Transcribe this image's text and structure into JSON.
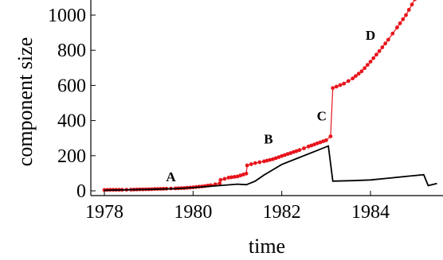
{
  "chart_data": {
    "type": "line",
    "xlabel": "time",
    "ylabel": "component size",
    "xlim": [
      1977.8,
      1985.6
    ],
    "ylim": [
      -10,
      1100
    ],
    "x_ticks": [
      1978,
      1980,
      1982,
      1984
    ],
    "y_ticks": [
      0,
      200,
      400,
      600,
      800,
      1000
    ],
    "grid": false,
    "legend": "none",
    "series": [
      {
        "color": "#e8141b",
        "marker": "circle",
        "points": [
          [
            1978.0,
            5
          ],
          [
            1978.2,
            6
          ],
          [
            1978.4,
            6
          ],
          [
            1978.6,
            7
          ],
          [
            1978.8,
            8
          ],
          [
            1979.0,
            9
          ],
          [
            1979.2,
            11
          ],
          [
            1979.4,
            12
          ],
          [
            1979.6,
            14
          ],
          [
            1979.8,
            16
          ],
          [
            1980.0,
            20
          ],
          [
            1980.2,
            25
          ],
          [
            1980.4,
            32
          ],
          [
            1980.6,
            42
          ],
          [
            1980.62,
            62
          ],
          [
            1980.8,
            75
          ],
          [
            1981.0,
            82
          ],
          [
            1981.2,
            98
          ],
          [
            1981.22,
            145
          ],
          [
            1981.4,
            158
          ],
          [
            1981.6,
            168
          ],
          [
            1981.8,
            180
          ],
          [
            1982.0,
            198
          ],
          [
            1982.2,
            215
          ],
          [
            1982.4,
            232
          ],
          [
            1982.6,
            252
          ],
          [
            1982.8,
            270
          ],
          [
            1983.0,
            288
          ],
          [
            1983.1,
            310
          ],
          [
            1983.15,
            585
          ],
          [
            1983.4,
            610
          ],
          [
            1983.6,
            640
          ],
          [
            1983.8,
            680
          ],
          [
            1984.0,
            735
          ],
          [
            1984.2,
            795
          ],
          [
            1984.4,
            860
          ],
          [
            1984.6,
            930
          ],
          [
            1984.8,
            1000
          ],
          [
            1985.0,
            1090
          ],
          [
            1985.1,
            1130
          ]
        ]
      },
      {
        "color": "#000000",
        "marker": "none",
        "points": [
          [
            1978.0,
            3
          ],
          [
            1979.0,
            8
          ],
          [
            1979.6,
            12
          ],
          [
            1980.0,
            18
          ],
          [
            1980.6,
            30
          ],
          [
            1981.0,
            38
          ],
          [
            1981.2,
            35
          ],
          [
            1981.4,
            55
          ],
          [
            1981.6,
            90
          ],
          [
            1981.8,
            120
          ],
          [
            1982.0,
            150
          ],
          [
            1982.4,
            190
          ],
          [
            1982.8,
            230
          ],
          [
            1983.05,
            255
          ],
          [
            1983.15,
            55
          ],
          [
            1983.6,
            58
          ],
          [
            1984.0,
            62
          ],
          [
            1984.4,
            72
          ],
          [
            1984.8,
            82
          ],
          [
            1985.2,
            92
          ],
          [
            1985.3,
            30
          ],
          [
            1985.5,
            42
          ]
        ]
      }
    ],
    "annotations": [
      {
        "text": "A",
        "x": 1979.5,
        "y": 55
      },
      {
        "text": "B",
        "x": 1981.7,
        "y": 270
      },
      {
        "text": "C",
        "x": 1982.9,
        "y": 400
      },
      {
        "text": "D",
        "x": 1984.0,
        "y": 860
      }
    ]
  }
}
